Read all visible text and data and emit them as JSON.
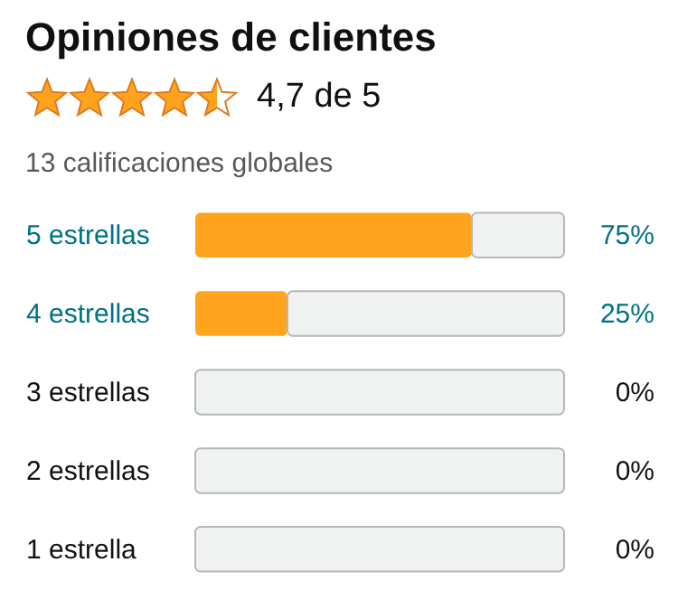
{
  "chart_data": {
    "type": "bar",
    "orientation": "horizontal",
    "stacked": true,
    "title": "Opiniones de clientes",
    "subtitle": "4,7 de 5",
    "annotations": [
      "13 calificaciones globales"
    ],
    "categories": [
      "5 estrellas",
      "4 estrellas",
      "3 estrellas",
      "2 estrellas",
      "1 estrella"
    ],
    "series": [
      {
        "color": "#ffa41c",
        "values": [
          75,
          25,
          0,
          0,
          0
        ],
        "value_labels": [
          "75%",
          "25%",
          "0%",
          "0%",
          "0%"
        ]
      },
      {
        "color": "#f0f2f2",
        "values": [
          25,
          75,
          100,
          100,
          100
        ]
      }
    ],
    "xlim": [
      0,
      100
    ],
    "tick_labels": "y"
  }
}
